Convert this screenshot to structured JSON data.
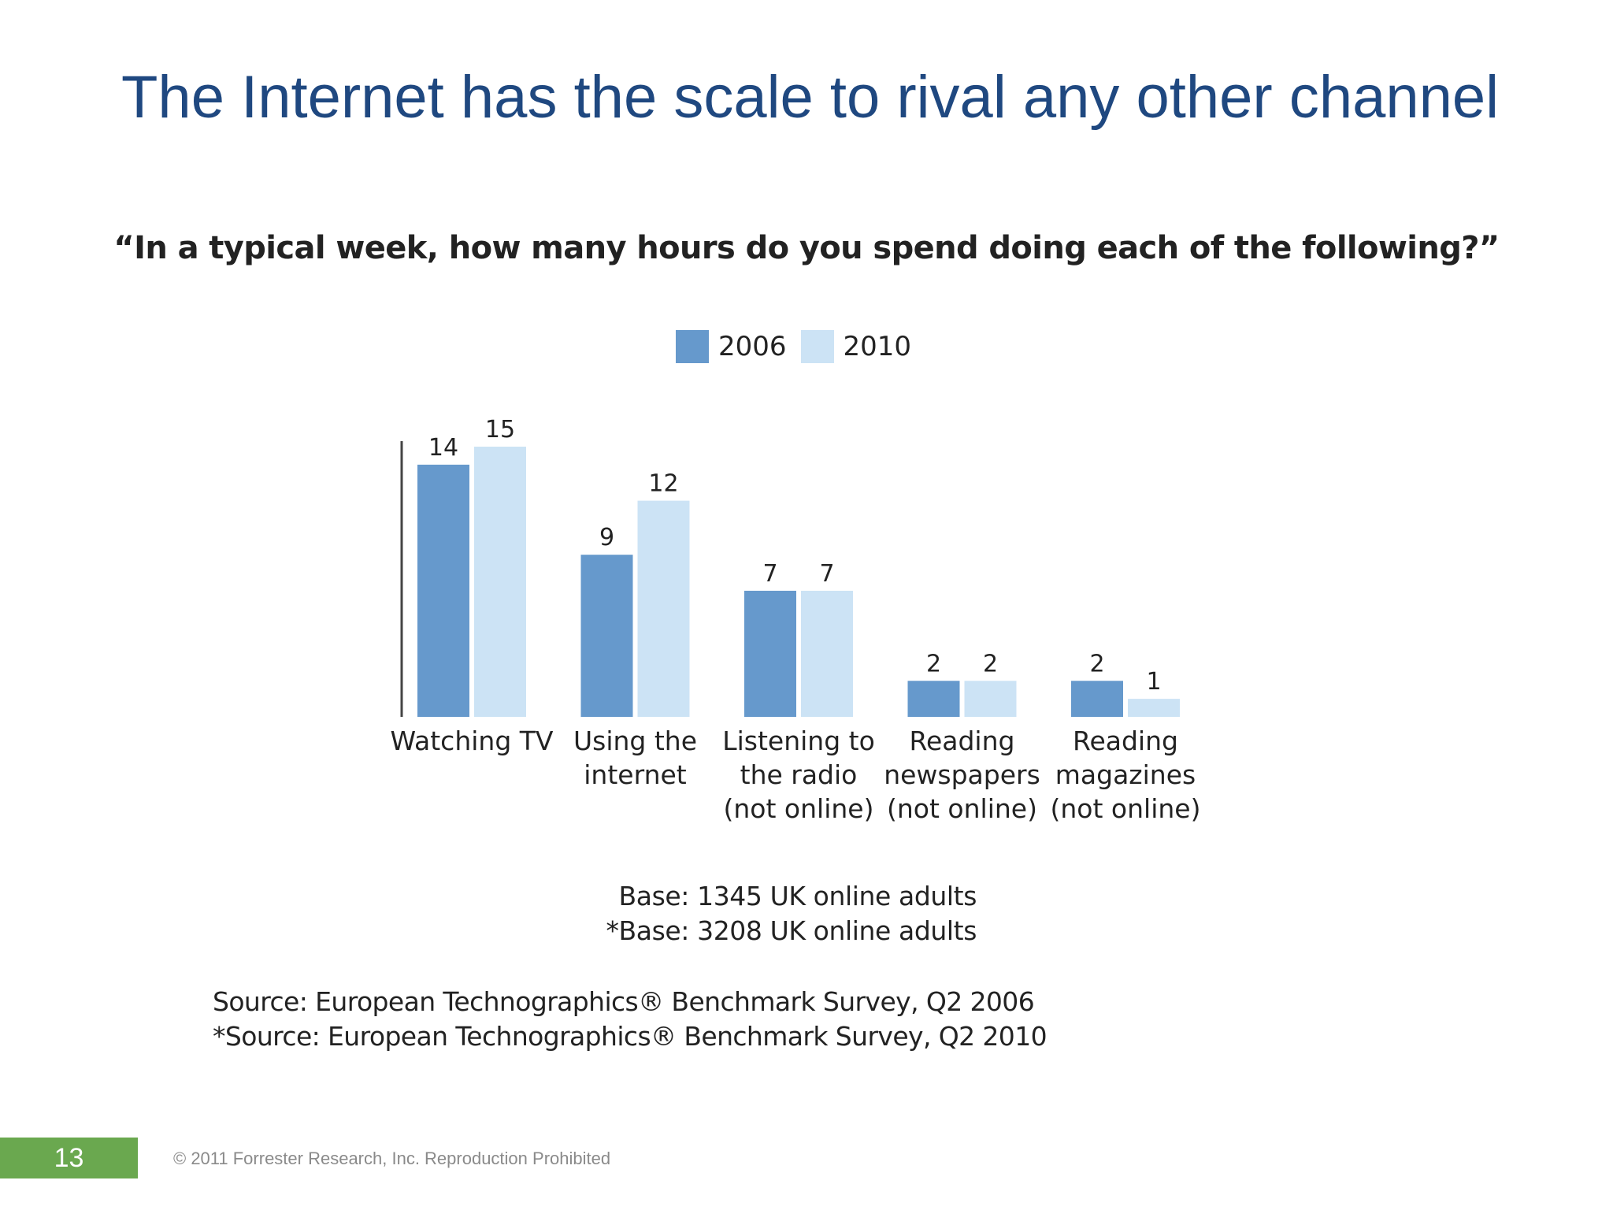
{
  "slide": {
    "title": "The Internet has the scale to rival any other channel",
    "page_number": "13",
    "copyright": "© 2011 Forrester Research, Inc. Reproduction Prohibited"
  },
  "notes": {
    "base_1": "Base: 1345 UK online adults",
    "base_2": "*Base: 3208 UK online adults",
    "source_1": "Source: European Technographics® Benchmark Survey, Q2 2006",
    "source_2": "*Source: European Technographics® Benchmark Survey, Q2 2010"
  },
  "chart_data": {
    "type": "bar",
    "title": "“In a typical week, how many hours do you spend doing each of the following?”",
    "xlabel": "",
    "ylabel": "",
    "ylim": [
      0,
      15
    ],
    "grid": false,
    "legend_position": "top-center",
    "categories": [
      [
        "Watching TV"
      ],
      [
        "Using the",
        "internet"
      ],
      [
        "Listening to",
        "the radio",
        "(not online)"
      ],
      [
        "Reading",
        "newspapers",
        "(not online)"
      ],
      [
        "Reading",
        "magazines",
        "(not online)"
      ]
    ],
    "series": [
      {
        "name": "2006",
        "color": "#6699cc",
        "values": [
          14,
          9,
          7,
          2,
          2
        ]
      },
      {
        "name": "2010",
        "color": "#cce3f5",
        "values": [
          15,
          12,
          7,
          2,
          1
        ]
      }
    ]
  }
}
